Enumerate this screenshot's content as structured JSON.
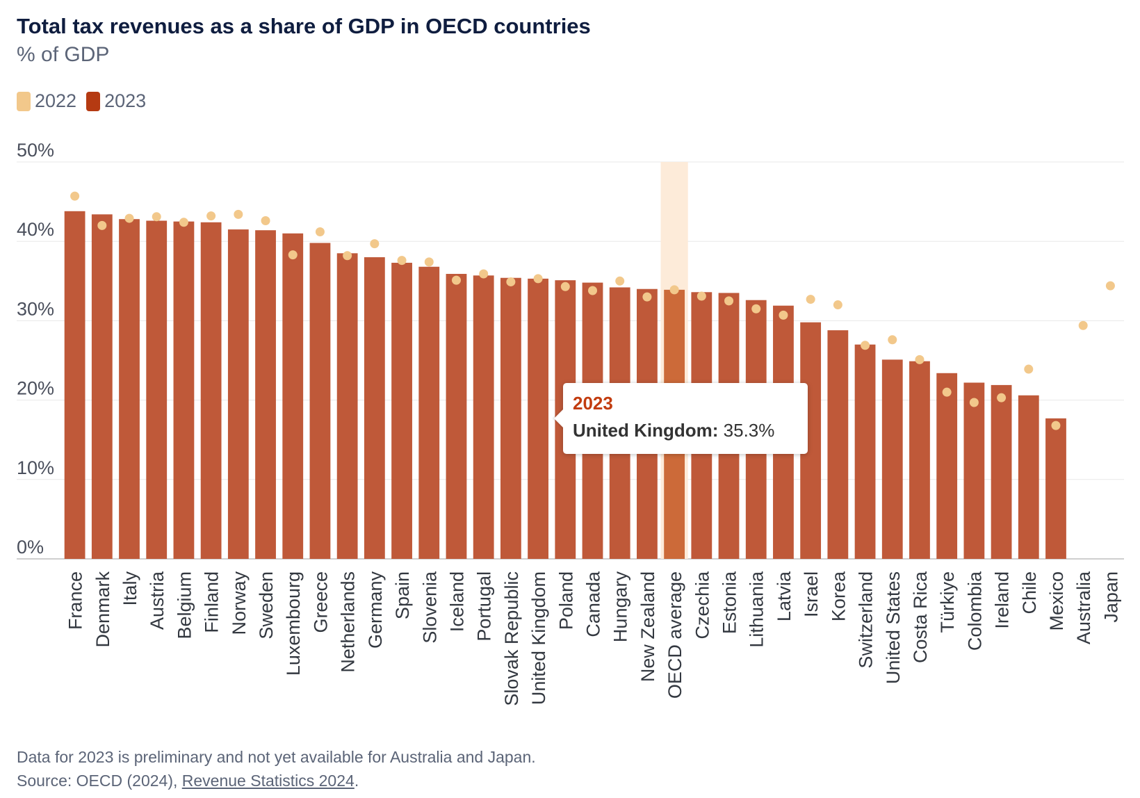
{
  "header": {
    "title": "Total tax revenues as a share of GDP in OECD countries",
    "subtitle": "% of GDP"
  },
  "legend": {
    "items": [
      {
        "label": "2022",
        "color": "#f2c88b"
      },
      {
        "label": "2023",
        "color": "#b53a12"
      }
    ]
  },
  "colors": {
    "bar": "#bf5939",
    "bar_highlight": "#cc6a39",
    "dot": "#f2c88b",
    "highlight_band": "#fdebd9",
    "grid": "#e8e8e8"
  },
  "chart_data": {
    "type": "bar",
    "ylim": [
      0,
      50
    ],
    "yticks": [
      "0%",
      "10%",
      "20%",
      "30%",
      "40%",
      "50%"
    ],
    "highlight_category": "OECD average",
    "grid": true,
    "categories": [
      "France",
      "Denmark",
      "Italy",
      "Austria",
      "Belgium",
      "Finland",
      "Norway",
      "Sweden",
      "Luxembourg",
      "Greece",
      "Netherlands",
      "Germany",
      "Spain",
      "Slovenia",
      "Iceland",
      "Portugal",
      "Slovak Republic",
      "United Kingdom",
      "Poland",
      "Canada",
      "Hungary",
      "New Zealand",
      "OECD average",
      "Czechia",
      "Estonia",
      "Lithuania",
      "Latvia",
      "Israel",
      "Korea",
      "Switzerland",
      "United States",
      "Costa Rica",
      "Türkiye",
      "Colombia",
      "Ireland",
      "Chile",
      "Mexico",
      "Australia",
      "Japan"
    ],
    "series": [
      {
        "name": "2022",
        "type": "scatter",
        "values": [
          45.7,
          42.0,
          42.9,
          43.1,
          42.4,
          43.2,
          43.4,
          42.6,
          38.3,
          41.2,
          38.2,
          39.7,
          37.6,
          37.4,
          35.1,
          35.9,
          34.9,
          35.3,
          34.3,
          33.8,
          35.0,
          33.0,
          33.9,
          33.1,
          32.5,
          31.5,
          30.7,
          32.7,
          32.0,
          26.9,
          27.6,
          25.1,
          21.0,
          19.7,
          20.3,
          23.9,
          16.8,
          29.4,
          34.4
        ]
      },
      {
        "name": "2023",
        "type": "bar",
        "values": [
          43.8,
          43.4,
          42.8,
          42.6,
          42.5,
          42.4,
          41.5,
          41.4,
          41.0,
          39.8,
          38.5,
          38.0,
          37.3,
          36.8,
          35.9,
          35.7,
          35.4,
          35.3,
          35.1,
          34.8,
          34.2,
          34.0,
          33.9,
          33.6,
          33.5,
          32.6,
          31.9,
          29.8,
          28.8,
          27.0,
          25.1,
          24.9,
          23.4,
          22.2,
          21.9,
          20.6,
          17.7,
          null,
          null
        ]
      }
    ]
  },
  "tooltip": {
    "year": "2023",
    "country_label": "United Kingdom:",
    "value": "35.3%"
  },
  "footnote": {
    "line1": "Data for 2023 is preliminary and not yet available for Australia and Japan.",
    "line2_prefix": "Source: OECD (2024), ",
    "link_text": "Revenue Statistics 2024",
    "line2_suffix": "."
  }
}
